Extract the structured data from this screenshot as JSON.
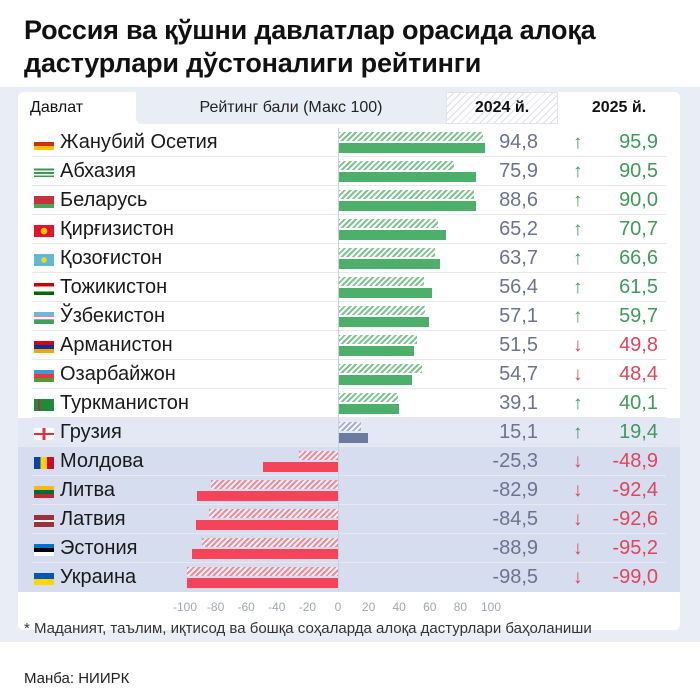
{
  "title": "Россия ва қўшни давлатлар орасида алоқа дастурлари дўстоналиги рейтинги",
  "header": {
    "country": "Давлат",
    "rating": "Рейтинг бали (Макс 100)",
    "y2024": "2024 й.",
    "y2025": "2025 й."
  },
  "colors": {
    "positive": "#4caf6a",
    "positive_hatch": "#7cc58f",
    "neutral": "#6b7aa0",
    "negative": "#f5445a",
    "negative_hatch": "#f28b98",
    "up_text": "#3f9a5a",
    "down_text": "#e0455a"
  },
  "rows": [
    {
      "country": "Жанубий Осетия",
      "flag": "south-ossetia",
      "v2024": "94,8",
      "v2025": "95,9",
      "trend": "up",
      "arrow": "↑",
      "group": "positive"
    },
    {
      "country": "Абхазия",
      "flag": "abkhazia",
      "v2024": "75,9",
      "v2025": "90,5",
      "trend": "up",
      "arrow": "↑",
      "group": "positive"
    },
    {
      "country": "Беларусь",
      "flag": "belarus",
      "v2024": "88,6",
      "v2025": "90,0",
      "trend": "up",
      "arrow": "↑",
      "group": "positive"
    },
    {
      "country": "Қирғизистон",
      "flag": "kyrgyzstan",
      "v2024": "65,2",
      "v2025": "70,7",
      "trend": "up",
      "arrow": "↑",
      "group": "positive"
    },
    {
      "country": "Қозоғистон",
      "flag": "kazakhstan",
      "v2024": "63,7",
      "v2025": "66,6",
      "trend": "up",
      "arrow": "↑",
      "group": "positive"
    },
    {
      "country": "Тожикистон",
      "flag": "tajikistan",
      "v2024": "56,4",
      "v2025": "61,5",
      "trend": "up",
      "arrow": "↑",
      "group": "positive"
    },
    {
      "country": "Ўзбекистон",
      "flag": "uzbekistan",
      "v2024": "57,1",
      "v2025": "59,7",
      "trend": "up",
      "arrow": "↑",
      "group": "positive"
    },
    {
      "country": "Арманистон",
      "flag": "armenia",
      "v2024": "51,5",
      "v2025": "49,8",
      "trend": "down",
      "arrow": "↓",
      "group": "positive"
    },
    {
      "country": "Озарбайжон",
      "flag": "azerbaijan",
      "v2024": "54,7",
      "v2025": "48,4",
      "trend": "down",
      "arrow": "↓",
      "group": "positive"
    },
    {
      "country": "Туркманистон",
      "flag": "turkmenistan",
      "v2024": "39,1",
      "v2025": "40,1",
      "trend": "up",
      "arrow": "↑",
      "group": "positive"
    },
    {
      "country": "Грузия",
      "flag": "georgia",
      "v2024": "15,1",
      "v2025": "19,4",
      "trend": "up",
      "arrow": "↑",
      "group": "neutral"
    },
    {
      "country": "Молдова",
      "flag": "moldova",
      "v2024": "-25,3",
      "v2025": "-48,9",
      "trend": "down",
      "arrow": "↓",
      "group": "negative"
    },
    {
      "country": "Литва",
      "flag": "lithuania",
      "v2024": "-82,9",
      "v2025": "-92,4",
      "trend": "down",
      "arrow": "↓",
      "group": "negative"
    },
    {
      "country": "Латвия",
      "flag": "latvia",
      "v2024": "-84,5",
      "v2025": "-92,6",
      "trend": "down",
      "arrow": "↓",
      "group": "negative"
    },
    {
      "country": "Эстония",
      "flag": "estonia",
      "v2024": "-88,9",
      "v2025": "-95,2",
      "trend": "down",
      "arrow": "↓",
      "group": "negative"
    },
    {
      "country": "Украина",
      "flag": "ukraine",
      "v2024": "-98,5",
      "v2025": "-99,0",
      "trend": "down",
      "arrow": "↓",
      "group": "negative"
    }
  ],
  "axis": {
    "ticks": [
      "-100",
      "-80",
      "-60",
      "-40",
      "-20",
      "0",
      "20",
      "40",
      "60",
      "80",
      "100"
    ]
  },
  "footnote": "* Маданият, таълим, иқтисод ва бошқа соҳаларда алоқа дастурлари баҳоланиши",
  "source": "Манба: НИИРК",
  "chart_data": {
    "type": "bar",
    "title": "Россия ва қўшни давлатлар орасида алоқа дастурлари дўстоналиги рейтинги",
    "orientation": "horizontal",
    "xlabel": "Рейтинг бали (Макс 100)",
    "ylabel": "Давлат",
    "xlim": [
      -100,
      100
    ],
    "categories": [
      "Жанубий Осетия",
      "Абхазия",
      "Беларусь",
      "Қирғизистон",
      "Қозоғистон",
      "Тожикистон",
      "Ўзбекистон",
      "Арманистон",
      "Озарбайжон",
      "Туркманистон",
      "Грузия",
      "Молдова",
      "Литва",
      "Латвия",
      "Эстония",
      "Украина"
    ],
    "series": [
      {
        "name": "2024 й.",
        "style": "hatched",
        "values": [
          94.8,
          75.9,
          88.6,
          65.2,
          63.7,
          56.4,
          57.1,
          51.5,
          54.7,
          39.1,
          15.1,
          -25.3,
          -82.9,
          -84.5,
          -88.9,
          -98.5
        ]
      },
      {
        "name": "2025 й.",
        "style": "solid",
        "values": [
          95.9,
          90.5,
          90.0,
          70.7,
          66.6,
          61.5,
          59.7,
          49.8,
          48.4,
          40.1,
          19.4,
          -48.9,
          -92.4,
          -92.6,
          -95.2,
          -99.0
        ]
      }
    ],
    "tick_labels": [
      -100,
      -80,
      -60,
      -40,
      -20,
      0,
      20,
      40,
      60,
      80,
      100
    ],
    "grid": false,
    "annotations": [
      "* Маданият, таълим, иқтисод ва бошқа соҳаларда алоқа дастурлари баҳоланиши",
      "Манба: НИИРК"
    ]
  }
}
